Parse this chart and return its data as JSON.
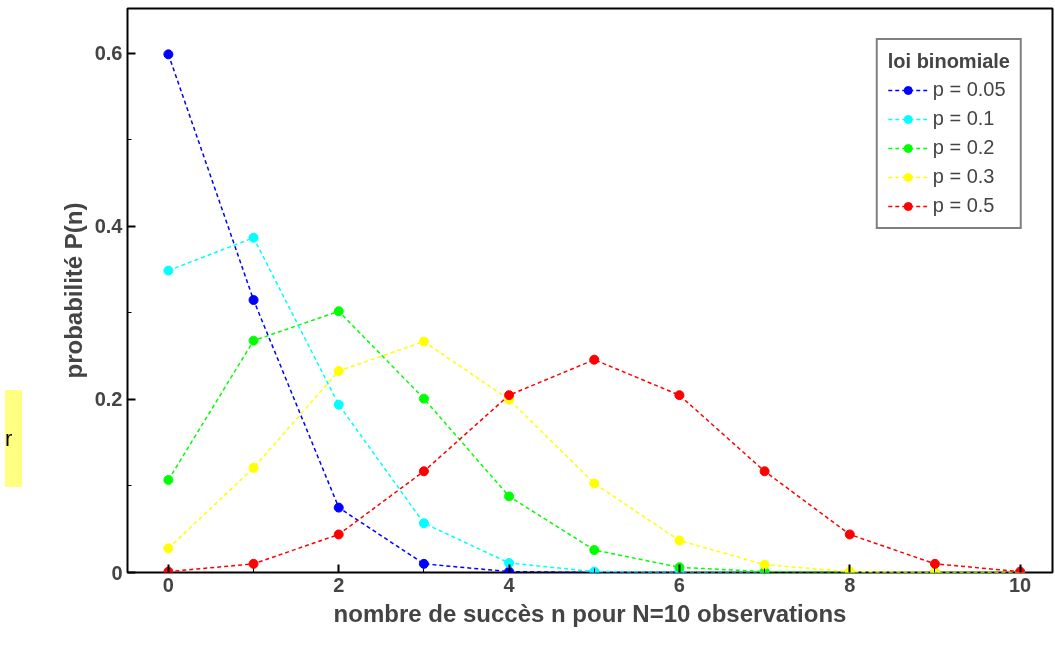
{
  "chart_data": {
    "type": "line",
    "xlabel": "nombre de succès n pour N=10 observations",
    "ylabel": "probabilité P(n)",
    "legend_title": "loi binomiale",
    "annotations": [
      "r"
    ],
    "x": [
      0,
      1,
      2,
      3,
      4,
      5,
      6,
      7,
      8,
      9,
      10
    ],
    "xlim": [
      -0.48,
      10.38
    ],
    "ylim": [
      0,
      0.652
    ],
    "xticks": [
      0,
      2,
      4,
      6,
      8,
      10
    ],
    "yticks": [
      0,
      0.2,
      0.4,
      0.6
    ],
    "series": [
      {
        "name": "p = 0.05",
        "color": "#0000ff",
        "values": [
          0.599,
          0.315,
          0.075,
          0.01,
          0.001,
          0,
          0,
          null,
          null,
          null,
          null
        ]
      },
      {
        "name": "p = 0.1",
        "color": "#00ffff",
        "values": [
          0.349,
          0.387,
          0.194,
          0.057,
          0.011,
          0.001,
          0,
          0,
          null,
          null,
          null
        ]
      },
      {
        "name": "p = 0.2",
        "color": "#00ff00",
        "values": [
          0.107,
          0.268,
          0.302,
          0.201,
          0.088,
          0.026,
          0.006,
          0.001,
          0,
          0,
          0
        ]
      },
      {
        "name": "p = 0.3",
        "color": "#ffff00",
        "values": [
          0.028,
          0.121,
          0.233,
          0.267,
          0.2,
          0.103,
          0.037,
          0.009,
          0.001,
          0,
          0
        ]
      },
      {
        "name": "p = 0.5",
        "color": "#ff0000",
        "values": [
          0.001,
          0.01,
          0.044,
          0.117,
          0.205,
          0.246,
          0.205,
          0.117,
          0.044,
          0.01,
          0.001
        ]
      }
    ],
    "marker": "circle",
    "line_style": "dashed",
    "legend": "top right",
    "grid": false
  }
}
